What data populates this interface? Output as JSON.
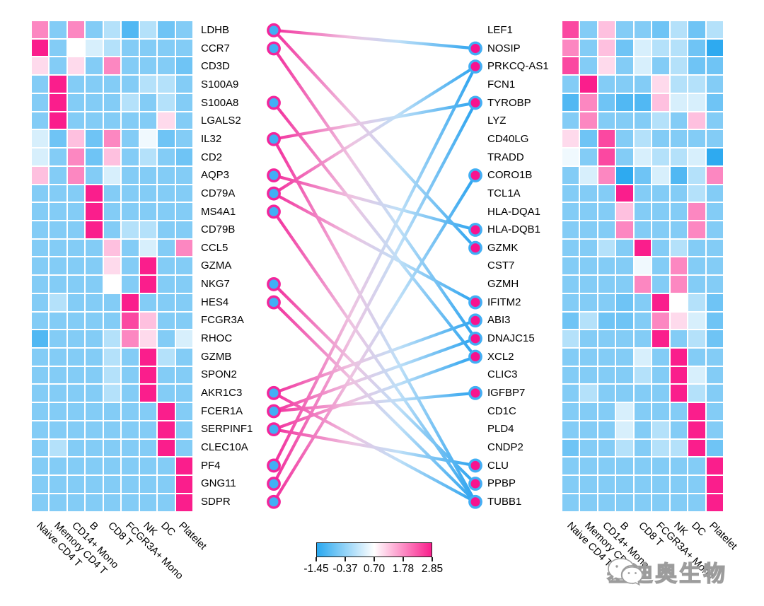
{
  "figure": {
    "description": "Paired marker-gene heatmaps of PBMC cell types linked by a correspondence tanglegram"
  },
  "columns": [
    "Naive CD4 T",
    "Memory CD4 T",
    "CD14+ Mono",
    "B",
    "CD8 T",
    "FCGR3A+ Mono",
    "NK",
    "DC",
    "Platelet"
  ],
  "chart_data": [
    {
      "type": "heatmap",
      "title": "left marker gene heatmap (scaled expression)",
      "x_tick_labels": [
        "Naive CD4 T",
        "Memory CD4 T",
        "CD14+ Mono",
        "B",
        "CD8 T",
        "FCGR3A+ Mono",
        "NK",
        "DC",
        "Platelet"
      ],
      "y_tick_labels": [
        "LDHB",
        "CCR7",
        "CD3D",
        "S100A9",
        "S100A8",
        "LGALS2",
        "IL32",
        "CD2",
        "AQP3",
        "CD79A",
        "MS4A1",
        "CD79B",
        "CCL5",
        "GZMA",
        "NKG7",
        "HES4",
        "FCGR3A",
        "RHOC",
        "GZMB",
        "SPON2",
        "AKR1C3",
        "FCER1A",
        "SERPINF1",
        "CLEC10A",
        "PF4",
        "GNG11",
        "SDPR"
      ],
      "value_range": [
        -1.45,
        2.85
      ],
      "values": [
        [
          1.85,
          -0.55,
          1.85,
          -0.55,
          -0.05,
          -1.05,
          -0.05,
          -0.75,
          -0.55
        ],
        [
          2.85,
          -0.55,
          0.7,
          0.3,
          -0.05,
          -0.55,
          -0.55,
          -0.55,
          -0.55
        ],
        [
          1.05,
          -0.55,
          1.05,
          -0.55,
          1.85,
          -0.55,
          -0.55,
          -0.55,
          -0.75
        ],
        [
          -0.55,
          2.85,
          -0.55,
          -0.55,
          -0.55,
          -0.55,
          -0.05,
          -0.05,
          -0.55
        ],
        [
          -0.55,
          2.85,
          -0.55,
          -0.55,
          -0.55,
          -0.05,
          -0.55,
          -0.05,
          -0.55
        ],
        [
          -0.55,
          2.85,
          -0.55,
          -0.55,
          -0.55,
          -0.55,
          -0.55,
          1.05,
          -0.55
        ],
        [
          0.3,
          -0.75,
          1.3,
          -0.75,
          1.85,
          -0.55,
          0.55,
          -0.75,
          -0.55
        ],
        [
          0.3,
          -0.55,
          1.85,
          -0.75,
          1.3,
          -0.55,
          -0.05,
          -0.55,
          -0.75
        ],
        [
          1.3,
          -0.55,
          1.85,
          -0.55,
          0.3,
          -0.55,
          -0.55,
          -0.55,
          -0.55
        ],
        [
          -0.55,
          -0.55,
          -0.55,
          2.85,
          -0.55,
          -0.55,
          -0.55,
          -0.55,
          -0.55
        ],
        [
          -0.55,
          -0.55,
          -0.55,
          2.85,
          -0.55,
          -0.55,
          -0.55,
          -0.55,
          -0.55
        ],
        [
          -0.55,
          -0.55,
          -0.55,
          2.85,
          -0.55,
          -0.05,
          -0.05,
          -0.55,
          -0.55
        ],
        [
          -0.55,
          -0.55,
          -0.55,
          -0.55,
          1.3,
          -0.55,
          0.3,
          -0.55,
          1.85
        ],
        [
          -0.55,
          -0.55,
          -0.55,
          -0.55,
          1.05,
          -0.55,
          2.85,
          -0.55,
          -0.55
        ],
        [
          -0.55,
          -0.55,
          -0.55,
          -0.55,
          0.7,
          -0.55,
          2.85,
          -0.55,
          -0.55
        ],
        [
          -0.55,
          -0.05,
          -0.55,
          -0.55,
          -0.55,
          2.85,
          -0.55,
          -0.55,
          -0.55
        ],
        [
          -0.55,
          -0.55,
          -0.55,
          -0.55,
          -0.55,
          2.45,
          1.3,
          -0.55,
          -0.55
        ],
        [
          -1.05,
          -0.55,
          -0.55,
          -0.55,
          -0.05,
          1.85,
          1.05,
          -0.55,
          0.3
        ],
        [
          -0.55,
          -0.55,
          -0.55,
          -0.55,
          -0.05,
          -0.55,
          2.85,
          -0.05,
          -0.55
        ],
        [
          -0.55,
          -0.55,
          -0.55,
          -0.55,
          -0.05,
          -0.55,
          2.85,
          -0.55,
          -0.55
        ],
        [
          -0.55,
          -0.55,
          -0.55,
          -0.55,
          -0.05,
          -0.55,
          2.85,
          -0.55,
          -0.55
        ],
        [
          -0.55,
          -0.55,
          -0.55,
          -0.55,
          -0.55,
          -0.55,
          -0.55,
          2.85,
          -0.55
        ],
        [
          -0.55,
          -0.55,
          -0.55,
          -0.55,
          -0.55,
          -0.55,
          -0.55,
          2.85,
          -0.55
        ],
        [
          -0.55,
          -0.05,
          -0.55,
          -0.55,
          -0.55,
          -0.55,
          -0.55,
          2.85,
          -0.55
        ],
        [
          -0.55,
          -0.55,
          -0.55,
          -0.55,
          -0.55,
          -0.55,
          -0.55,
          -0.55,
          2.85
        ],
        [
          -0.55,
          -0.55,
          -0.55,
          -0.55,
          -0.55,
          -0.55,
          -0.55,
          -0.55,
          2.85
        ],
        [
          -0.55,
          -0.55,
          -0.55,
          -0.55,
          -0.55,
          -0.55,
          -0.55,
          -0.55,
          2.85
        ]
      ]
    },
    {
      "type": "heatmap",
      "title": "right marker gene heatmap (scaled expression)",
      "x_tick_labels": [
        "Naive CD4 T",
        "Memory CD4 T",
        "CD14+ Mono",
        "B",
        "CD8 T",
        "FCGR3A+ Mono",
        "NK",
        "DC",
        "Platelet"
      ],
      "y_tick_labels": [
        "LEF1",
        "NOSIP",
        "PRKCQ-AS1",
        "FCN1",
        "TYROBP",
        "LYZ",
        "CD40LG",
        "TRADD",
        "CORO1B",
        "TCL1A",
        "HLA-DQA1",
        "HLA-DQB1",
        "GZMK",
        "CST7",
        "GZMH",
        "IFITM2",
        "ABI3",
        "DNAJC15",
        "XCL2",
        "CLIC3",
        "IGFBP7",
        "CD1C",
        "PLD4",
        "CNDP2",
        "CLU",
        "PPBP",
        "TUBB1"
      ],
      "value_range": [
        -1.45,
        2.85
      ],
      "values": [
        [
          2.45,
          -0.55,
          1.3,
          -0.55,
          -0.55,
          -0.75,
          -0.05,
          -0.75,
          -0.05
        ],
        [
          1.85,
          -0.55,
          1.3,
          -0.75,
          0.3,
          -0.05,
          -0.05,
          -0.75,
          -1.4
        ],
        [
          2.45,
          -0.55,
          1.05,
          -0.55,
          0.3,
          -0.55,
          -0.05,
          -0.75,
          -0.75
        ],
        [
          -0.55,
          2.85,
          -0.55,
          -0.55,
          -0.55,
          1.05,
          -0.05,
          -0.05,
          -0.55
        ],
        [
          -1.05,
          1.85,
          -0.75,
          -1.05,
          -1.05,
          1.3,
          0.3,
          0.3,
          -0.75
        ],
        [
          -0.55,
          1.85,
          -0.55,
          -0.55,
          -0.55,
          -0.05,
          -0.55,
          1.3,
          -0.55
        ],
        [
          1.05,
          -0.75,
          2.45,
          -0.55,
          -0.05,
          -0.55,
          -0.55,
          -0.55,
          -0.55
        ],
        [
          0.55,
          -0.55,
          2.45,
          -0.55,
          0.3,
          -0.05,
          -0.05,
          0.3,
          -1.4
        ],
        [
          -0.55,
          0.3,
          1.85,
          -1.4,
          -0.75,
          0.3,
          -1.05,
          -0.05,
          1.85
        ],
        [
          -0.55,
          -0.55,
          -0.55,
          2.85,
          -0.55,
          -0.55,
          -0.55,
          -0.05,
          -0.55
        ],
        [
          -0.55,
          -0.55,
          -0.55,
          1.3,
          -0.55,
          -0.55,
          -0.55,
          1.85,
          -0.55
        ],
        [
          -0.55,
          -0.55,
          -0.55,
          1.85,
          -0.55,
          -0.55,
          -0.55,
          1.85,
          -0.55
        ],
        [
          -0.55,
          -0.55,
          -0.05,
          -0.55,
          2.85,
          -0.55,
          -0.05,
          -0.55,
          -0.55
        ],
        [
          -0.55,
          -0.55,
          -0.55,
          -0.55,
          0.55,
          -0.55,
          1.85,
          -0.55,
          -0.55
        ],
        [
          -0.55,
          -0.55,
          -0.55,
          -0.55,
          1.85,
          -0.55,
          1.85,
          -0.55,
          -0.55
        ],
        [
          -0.55,
          -0.55,
          -0.55,
          -0.75,
          -0.55,
          2.85,
          0.7,
          -0.05,
          -0.75
        ],
        [
          -0.75,
          -0.05,
          -0.75,
          -0.75,
          -0.55,
          1.85,
          1.05,
          0.3,
          -0.75
        ],
        [
          -0.05,
          -0.55,
          -0.55,
          -0.55,
          -0.55,
          2.85,
          -0.55,
          -0.05,
          -0.75
        ],
        [
          -0.55,
          -0.55,
          -0.55,
          -0.55,
          0.3,
          -0.55,
          2.85,
          -0.55,
          -0.55
        ],
        [
          -0.55,
          -0.55,
          -0.55,
          -0.55,
          -0.05,
          -0.55,
          2.85,
          0.3,
          -0.55
        ],
        [
          -0.55,
          -0.05,
          -0.55,
          -0.55,
          -0.55,
          -0.55,
          2.85,
          -0.05,
          -0.55
        ],
        [
          -0.55,
          -0.55,
          -0.55,
          0.3,
          -0.55,
          -0.55,
          -0.55,
          2.85,
          -0.55
        ],
        [
          -0.55,
          -0.55,
          -0.55,
          0.3,
          -0.55,
          -0.05,
          -0.55,
          2.85,
          -0.55
        ],
        [
          -0.75,
          -0.55,
          -0.55,
          -0.05,
          -0.55,
          -0.05,
          -0.05,
          2.85,
          -0.75
        ],
        [
          -0.55,
          -0.55,
          -0.55,
          -0.55,
          -0.55,
          -0.55,
          -0.55,
          -0.55,
          2.85
        ],
        [
          -0.55,
          -0.55,
          -0.55,
          -0.55,
          -0.55,
          -0.55,
          -0.55,
          -0.55,
          2.85
        ],
        [
          -0.55,
          -0.55,
          -0.55,
          -0.55,
          -0.55,
          -0.55,
          -0.55,
          -0.55,
          2.85
        ]
      ]
    },
    {
      "type": "scatter",
      "title": "gene correspondence links",
      "links": [
        [
          "LDHB",
          "NOSIP"
        ],
        [
          "LDHB",
          "GZMK"
        ],
        [
          "CCR7",
          "DNAJC15"
        ],
        [
          "S100A8",
          "XCL2"
        ],
        [
          "IL32",
          "TYROBP"
        ],
        [
          "IL32",
          "TUBB1"
        ],
        [
          "AQP3",
          "HLA-DQB1"
        ],
        [
          "CD79A",
          "PRKCQ-AS1"
        ],
        [
          "CD79A",
          "IFITM2"
        ],
        [
          "MS4A1",
          "TUBB1"
        ],
        [
          "NKG7",
          "PPBP"
        ],
        [
          "HES4",
          "TUBB1"
        ],
        [
          "AKR1C3",
          "ABI3"
        ],
        [
          "AKR1C3",
          "TUBB1"
        ],
        [
          "FCER1A",
          "IGFBP7"
        ],
        [
          "FCER1A",
          "DNAJC15"
        ],
        [
          "SERPINF1",
          "XCL2"
        ],
        [
          "SERPINF1",
          "CLU"
        ],
        [
          "PF4",
          "PRKCQ-AS1"
        ],
        [
          "GNG11",
          "TYROBP"
        ],
        [
          "SDPR",
          "CORO1B"
        ]
      ],
      "left_dot_genes": [
        "LDHB",
        "CCR7",
        "S100A8",
        "IL32",
        "AQP3",
        "CD79A",
        "MS4A1",
        "NKG7",
        "HES4",
        "AKR1C3",
        "FCER1A",
        "SERPINF1",
        "PF4",
        "GNG11",
        "SDPR"
      ],
      "right_dot_genes": [
        "NOSIP",
        "PRKCQ-AS1",
        "TYROBP",
        "CORO1B",
        "HLA-DQB1",
        "GZMK",
        "IFITM2",
        "ABI3",
        "DNAJC15",
        "XCL2",
        "IGFBP7",
        "CLU",
        "PPBP",
        "TUBB1"
      ]
    }
  ],
  "legend": {
    "tick_labels": [
      "-1.45",
      "-0.37",
      "0.70",
      "1.78",
      "2.85"
    ],
    "min": -1.45,
    "max": 2.85
  },
  "colors": {
    "scale_low": "#29a8f0",
    "scale_mid": "#ffffff",
    "scale_high": "#fa1e8c",
    "left_dot_fill": "#41aff5",
    "left_dot_ring": "#f3259b",
    "right_dot_fill": "#f7138f",
    "right_dot_ring": "#41aff5",
    "link_left": "#f32e9c",
    "link_right": "#2ba3ef"
  },
  "watermark": {
    "text": "基迪奥生物",
    "icon": "wechat-bubbles-icon"
  }
}
